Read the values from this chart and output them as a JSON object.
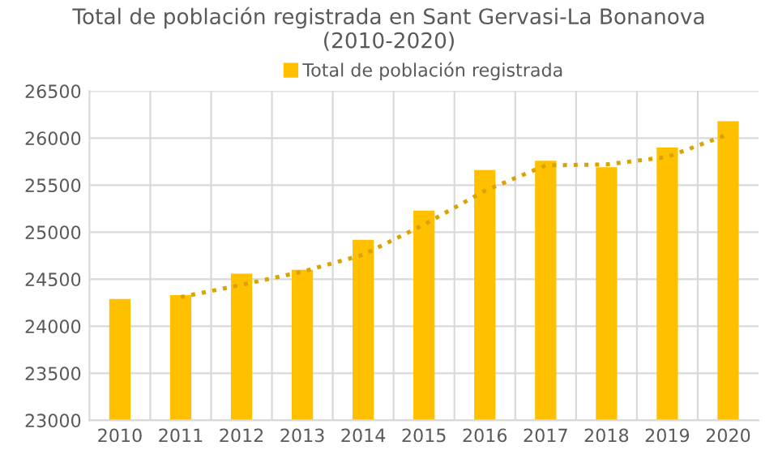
{
  "chart_data": {
    "type": "bar",
    "title": "Total de población registrada en Sant Gervasi-La Bonanova\n(2010-2020)",
    "categories": [
      "2010",
      "2011",
      "2012",
      "2013",
      "2014",
      "2015",
      "2016",
      "2017",
      "2018",
      "2019",
      "2020"
    ],
    "series": [
      {
        "name": "Total de población registrada",
        "color": "#ffc000",
        "values": [
          24290,
          24330,
          24560,
          24600,
          24920,
          25230,
          25660,
          25760,
          25690,
          25900,
          26180
        ]
      },
      {
        "type": "line",
        "color": "#d9a300",
        "line_style": "dotted",
        "values": [
          null,
          24310,
          24440,
          24580,
          24760,
          25080,
          25440,
          25710,
          25720,
          25800,
          26040
        ]
      }
    ],
    "ylim": [
      23000,
      26500
    ],
    "yticks": [
      23000,
      23500,
      24000,
      24500,
      25000,
      25500,
      26000,
      26500
    ],
    "grid": true,
    "legend": "top"
  }
}
